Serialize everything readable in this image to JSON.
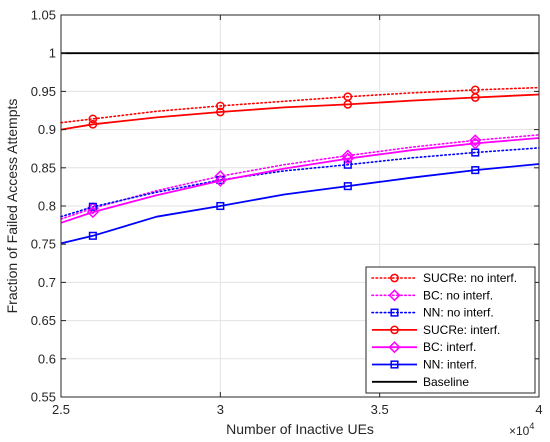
{
  "chart_data": {
    "type": "line",
    "xlabel": "Number of Inactive UEs",
    "ylabel": "Fraction of Failed Access Attempts",
    "x_multiplier": "×10",
    "x_multiplier_exp": "4",
    "xlim": [
      2.5,
      4
    ],
    "ylim": [
      0.55,
      1.05
    ],
    "xticks": [
      2.5,
      3,
      3.5,
      4
    ],
    "xtick_labels": [
      "2.5",
      "3",
      "3.5",
      "4"
    ],
    "yticks": [
      0.55,
      0.6,
      0.65,
      0.7,
      0.75,
      0.8,
      0.85,
      0.9,
      0.95,
      1,
      1.05
    ],
    "ytick_labels": [
      "0.55",
      "0.6",
      "0.65",
      "0.7",
      "0.75",
      "0.8",
      "0.85",
      "0.9",
      "0.95",
      "1",
      "1.05"
    ],
    "grid": true,
    "legend_position": "bottom-right",
    "series": [
      {
        "name": "SUCRe: no interf.",
        "color": "#ff0000",
        "line": "dotted",
        "marker": "circle",
        "x": [
          2.5,
          2.6,
          2.8,
          3.0,
          3.2,
          3.4,
          3.6,
          3.8,
          4.0
        ],
        "y": [
          0.909,
          0.914,
          0.924,
          0.931,
          0.937,
          0.943,
          0.948,
          0.952,
          0.955
        ],
        "marker_x": [
          2.6,
          3.0,
          3.4,
          3.8
        ],
        "marker_y": [
          0.914,
          0.931,
          0.943,
          0.952
        ]
      },
      {
        "name": "BC: no interf.",
        "color": "#ff00ff",
        "line": "dotted",
        "marker": "diamond",
        "x": [
          2.5,
          2.6,
          2.8,
          3.0,
          3.2,
          3.4,
          3.6,
          3.8,
          4.0
        ],
        "y": [
          0.783,
          0.797,
          0.82,
          0.839,
          0.854,
          0.866,
          0.877,
          0.886,
          0.893
        ],
        "marker_x": [
          2.6,
          3.0,
          3.4,
          3.8
        ],
        "marker_y": [
          0.797,
          0.839,
          0.866,
          0.886
        ]
      },
      {
        "name": "NN: no interf.",
        "color": "#0000ff",
        "line": "dotted",
        "marker": "square",
        "x": [
          2.5,
          2.6,
          2.8,
          3.0,
          3.2,
          3.4,
          3.6,
          3.8,
          4.0
        ],
        "y": [
          0.786,
          0.799,
          0.818,
          0.834,
          0.846,
          0.854,
          0.863,
          0.87,
          0.876
        ],
        "marker_x": [
          2.6,
          3.0,
          3.4,
          3.8
        ],
        "marker_y": [
          0.799,
          0.834,
          0.854,
          0.87
        ]
      },
      {
        "name": "SUCRe: interf.",
        "color": "#ff0000",
        "line": "solid",
        "marker": "circle",
        "x": [
          2.5,
          2.6,
          2.8,
          3.0,
          3.2,
          3.4,
          3.6,
          3.8,
          4.0
        ],
        "y": [
          0.9,
          0.907,
          0.916,
          0.923,
          0.929,
          0.933,
          0.938,
          0.942,
          0.946
        ],
        "marker_x": [
          2.6,
          3.0,
          3.4,
          3.8
        ],
        "marker_y": [
          0.907,
          0.923,
          0.933,
          0.942
        ]
      },
      {
        "name": "BC: interf.",
        "color": "#ff00ff",
        "line": "solid",
        "marker": "diamond",
        "x": [
          2.5,
          2.6,
          2.8,
          3.0,
          3.2,
          3.4,
          3.6,
          3.8,
          4.0
        ],
        "y": [
          0.778,
          0.792,
          0.814,
          0.833,
          0.849,
          0.862,
          0.873,
          0.882,
          0.889
        ],
        "marker_x": [
          2.6,
          3.0,
          3.4,
          3.8
        ],
        "marker_y": [
          0.792,
          0.833,
          0.862,
          0.882
        ]
      },
      {
        "name": "NN: interf.",
        "color": "#0000ff",
        "line": "solid",
        "marker": "square",
        "x": [
          2.5,
          2.6,
          2.8,
          3.0,
          3.2,
          3.4,
          3.6,
          3.8,
          4.0
        ],
        "y": [
          0.751,
          0.761,
          0.786,
          0.8,
          0.815,
          0.826,
          0.837,
          0.847,
          0.855
        ],
        "marker_x": [
          2.6,
          3.0,
          3.4,
          3.8
        ],
        "marker_y": [
          0.761,
          0.8,
          0.826,
          0.847
        ]
      },
      {
        "name": "Baseline",
        "color": "#000000",
        "line": "solid",
        "marker": "none",
        "x": [
          2.5,
          4.0
        ],
        "y": [
          1.0,
          1.0
        ],
        "marker_x": [],
        "marker_y": []
      }
    ]
  }
}
